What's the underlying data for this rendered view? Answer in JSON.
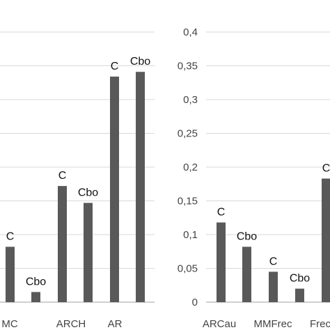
{
  "chart_data": [
    {
      "type": "bar",
      "title": "",
      "xlabel": "",
      "ylabel": "",
      "categories": [
        "MC",
        "ARCH",
        "AR"
      ],
      "series_labels": [
        "C",
        "Cbo"
      ],
      "values": [
        [
          0.082,
          0.015
        ],
        [
          0.172,
          0.147
        ],
        [
          0.334,
          0.341
        ]
      ],
      "ylim": [
        0,
        0.4
      ],
      "grid": true,
      "bar_color": "#595959",
      "grid_color": "#d9d9d9"
    },
    {
      "type": "bar",
      "title": "",
      "xlabel": "",
      "ylabel": "",
      "categories": [
        "ARCau",
        "MMFrec",
        "Frec"
      ],
      "series_labels": [
        "C",
        "Cbo"
      ],
      "values": [
        [
          0.118,
          0.082
        ],
        [
          0.045,
          0.02
        ],
        [
          0.183,
          null
        ]
      ],
      "ylim": [
        0,
        0.4
      ],
      "yticks": [
        "0",
        "0,05",
        "0,1",
        "0,15",
        "0,2",
        "0,25",
        "0,3",
        "0,35",
        "0,4"
      ],
      "grid": true,
      "bar_color": "#595959",
      "grid_color": "#d9d9d9"
    }
  ]
}
